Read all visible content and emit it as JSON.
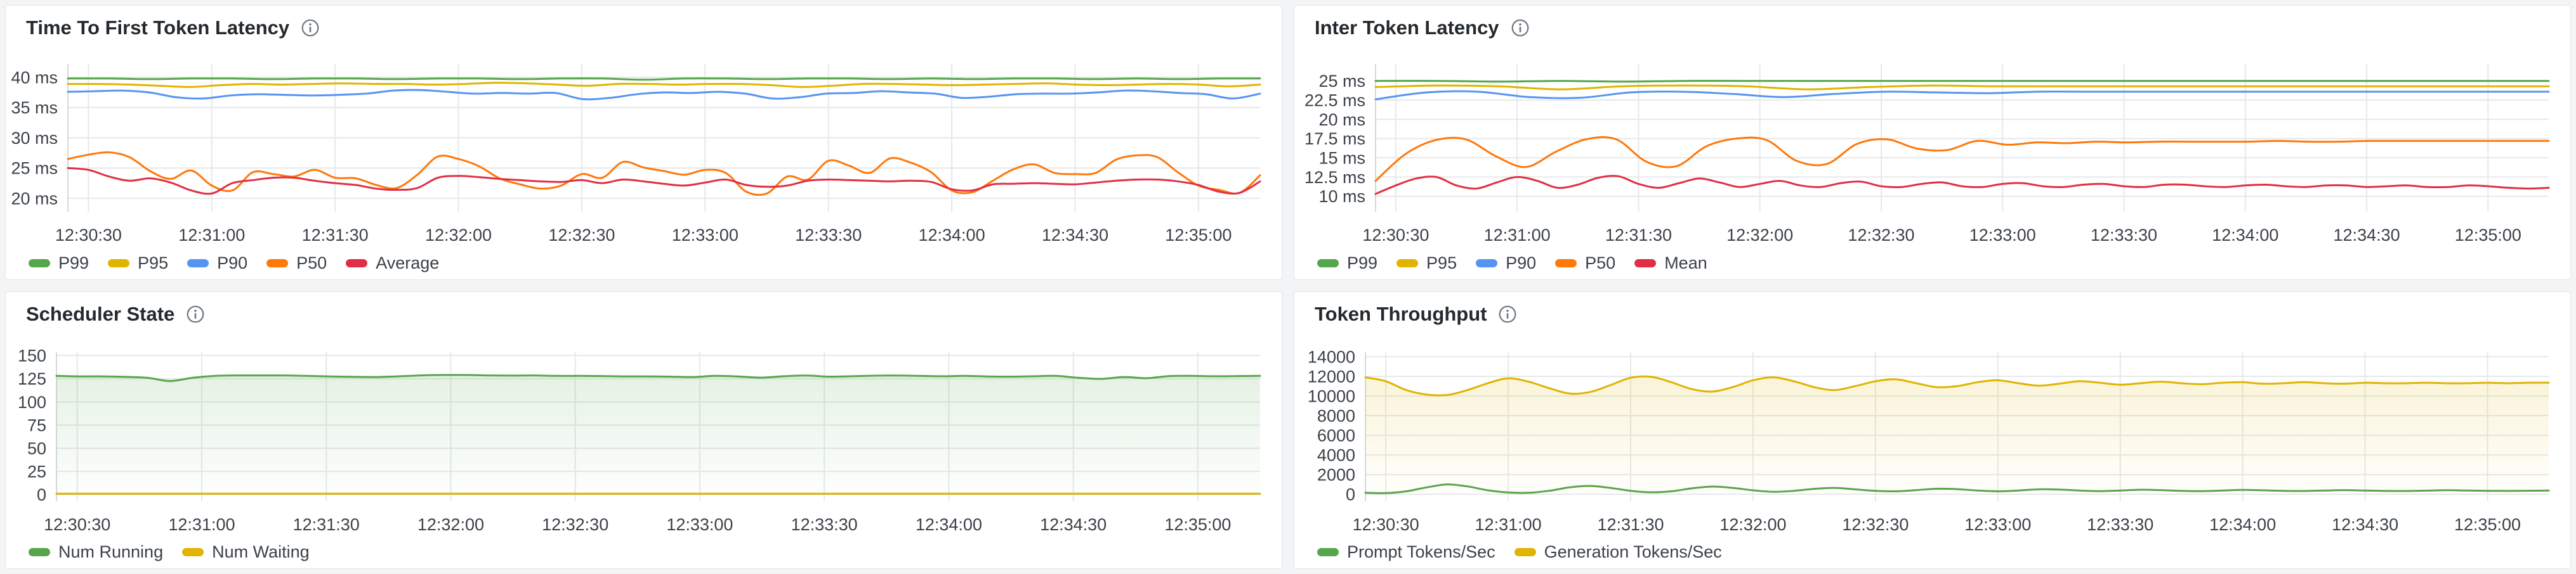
{
  "page": {
    "background": "#f3f4f5",
    "panel_background": "#ffffff",
    "grid_color": "#e6e8ea",
    "axis_color": "#d5d9dc",
    "tick_text_color": "#3b4149",
    "title_color": "#24292e"
  },
  "icons": {
    "panel_info": "info-icon"
  },
  "palette": {
    "green": "#56a64b",
    "yellow": "#e0b400",
    "blue": "#5794f2",
    "orange": "#ff780a",
    "red": "#e02f44"
  },
  "xticks_shared": {
    "labels": [
      "12:30:30",
      "12:31:00",
      "12:31:30",
      "12:32:00",
      "12:32:30",
      "12:33:00",
      "12:33:30",
      "12:34:00",
      "12:34:30",
      "12:35:00"
    ],
    "t": [
      5,
      35,
      65,
      95,
      125,
      155,
      185,
      215,
      245,
      275
    ]
  },
  "chart_data": [
    {
      "type": "line",
      "title": "Time To First Token Latency",
      "x_domain": [
        0,
        290
      ],
      "ylim": [
        17.8,
        42.2
      ],
      "grid": true,
      "legend_position": "bottom",
      "yticks": [
        {
          "v": 40,
          "label": "40 ms"
        },
        {
          "v": 35,
          "label": "35 ms"
        },
        {
          "v": 30,
          "label": "30 ms"
        },
        {
          "v": 25,
          "label": "25 ms"
        },
        {
          "v": 20,
          "label": "20 ms"
        }
      ],
      "series": [
        {
          "name": "P99",
          "color": "#56a64b",
          "values": [
            39.8,
            39.8,
            39.7,
            39.8,
            39.8,
            39.7,
            39.8,
            39.8,
            39.7,
            39.8,
            39.8,
            39.7,
            39.8,
            39.8,
            39.6,
            39.8,
            39.8,
            39.7,
            39.8,
            39.8,
            39.7,
            39.8,
            39.7,
            39.8,
            39.8,
            39.7,
            39.8,
            39.7,
            39.8,
            39.8
          ]
        },
        {
          "name": "P95",
          "color": "#e0b400",
          "values": [
            38.9,
            38.9,
            38.8,
            38.6,
            38.4,
            38.7,
            38.9,
            38.8,
            38.9,
            39.0,
            38.9,
            38.9,
            38.8,
            38.9,
            39.1,
            39.0,
            38.8,
            38.6,
            38.9,
            38.9,
            38.8,
            38.9,
            38.9,
            38.7,
            38.4,
            38.6,
            38.9,
            38.9,
            38.8,
            38.7,
            38.8,
            38.9,
            39.0,
            38.8,
            38.7,
            38.8,
            38.9,
            38.8,
            38.5,
            38.8
          ]
        },
        {
          "name": "P90",
          "color": "#5794f2",
          "values": [
            37.6,
            37.7,
            37.8,
            37.5,
            36.7,
            36.5,
            37.0,
            37.2,
            37.1,
            37.0,
            37.1,
            37.3,
            37.8,
            37.9,
            37.6,
            37.3,
            37.4,
            37.3,
            37.4,
            36.4,
            36.6,
            37.2,
            37.5,
            37.4,
            37.6,
            37.3,
            36.5,
            36.7,
            37.3,
            37.4,
            37.7,
            37.5,
            37.3,
            36.6,
            36.8,
            37.2,
            37.3,
            37.3,
            37.5,
            37.8,
            37.7,
            37.4,
            37.2,
            36.5,
            37.3
          ]
        },
        {
          "name": "P50",
          "color": "#ff780a",
          "values": [
            26.5,
            27.2,
            27.6,
            26.8,
            24.5,
            23.2,
            24.6,
            22.1,
            21.3,
            24.3,
            24.0,
            23.6,
            24.7,
            23.4,
            23.3,
            22.2,
            21.7,
            23.9,
            26.9,
            26.5,
            25.3,
            23.3,
            22.3,
            21.6,
            22.1,
            24.0,
            23.4,
            26.0,
            25.1,
            24.5,
            23.9,
            24.7,
            24.2,
            21.1,
            20.8,
            23.6,
            23.1,
            26.2,
            25.4,
            24.2,
            26.6,
            25.9,
            24.3,
            21.3,
            21.0,
            22.9,
            24.8,
            25.6,
            24.2,
            24.0,
            24.2,
            26.4,
            27.1,
            26.8,
            24.3,
            22.1,
            21.4,
            20.9,
            23.8
          ]
        },
        {
          "name": "Average",
          "color": "#e02f44",
          "values": [
            25.0,
            24.7,
            23.6,
            22.9,
            23.3,
            22.6,
            21.3,
            20.8,
            22.5,
            23.0,
            23.4,
            23.4,
            22.9,
            22.5,
            22.2,
            21.6,
            21.4,
            21.7,
            23.4,
            23.7,
            23.5,
            23.2,
            23.0,
            22.8,
            22.7,
            23.0,
            22.5,
            23.1,
            22.8,
            22.4,
            22.1,
            22.6,
            23.1,
            22.2,
            21.9,
            22.1,
            22.9,
            23.1,
            23.0,
            22.9,
            22.8,
            22.9,
            22.7,
            21.5,
            21.3,
            22.3,
            22.4,
            22.5,
            22.4,
            22.3,
            22.6,
            22.9,
            23.1,
            23.1,
            22.8,
            22.2,
            21.1,
            20.9,
            22.8
          ]
        }
      ]
    },
    {
      "type": "line",
      "title": "Inter Token Latency",
      "x_domain": [
        0,
        290
      ],
      "ylim": [
        8.0,
        27.2
      ],
      "grid": true,
      "legend_position": "bottom",
      "yticks": [
        {
          "v": 25,
          "label": "25 ms"
        },
        {
          "v": 22.5,
          "label": "22.5 ms"
        },
        {
          "v": 20,
          "label": "20 ms"
        },
        {
          "v": 17.5,
          "label": "17.5 ms"
        },
        {
          "v": 15,
          "label": "15 ms"
        },
        {
          "v": 12.5,
          "label": "12.5 ms"
        },
        {
          "v": 10,
          "label": "10 ms"
        }
      ],
      "series": [
        {
          "name": "P99",
          "color": "#56a64b",
          "values": [
            25.0,
            25.0,
            24.9,
            25.0,
            24.9,
            25.0,
            25.0,
            25.0,
            25.0,
            25.0,
            25.0,
            25.0,
            25.0,
            25.0,
            25.0,
            25.0,
            25.0,
            25.0,
            25.0,
            25.0
          ]
        },
        {
          "name": "P95",
          "color": "#e0b400",
          "values": [
            24.2,
            24.4,
            24.3,
            23.9,
            24.3,
            24.4,
            24.3,
            23.9,
            24.2,
            24.4,
            24.3,
            24.3,
            24.3,
            24.3,
            24.3,
            24.3,
            24.3,
            24.3,
            24.3,
            24.3
          ]
        },
        {
          "name": "P90",
          "color": "#5794f2",
          "values": [
            22.6,
            23.5,
            23.6,
            22.9,
            22.8,
            23.5,
            23.6,
            23.3,
            22.9,
            23.3,
            23.6,
            23.5,
            23.4,
            23.6,
            23.6,
            23.6,
            23.6,
            23.6,
            23.6,
            23.6,
            23.6,
            23.6,
            23.6,
            23.6
          ]
        },
        {
          "name": "P50",
          "color": "#ff780a",
          "values": [
            12.0,
            15.5,
            17.3,
            17.4,
            15.2,
            13.8,
            15.8,
            17.4,
            17.4,
            14.5,
            13.9,
            16.5,
            17.5,
            17.3,
            14.6,
            14.2,
            16.8,
            17.4,
            16.2,
            16.0,
            17.2,
            16.7,
            17.0,
            16.9,
            17.1,
            17.0,
            17.1,
            17.1,
            17.1,
            17.1,
            17.2,
            17.1,
            17.1,
            17.2,
            17.2,
            17.2,
            17.2,
            17.2,
            17.2,
            17.2
          ]
        },
        {
          "name": "Mean",
          "color": "#e02f44",
          "values": [
            10.3,
            11.4,
            12.3,
            12.5,
            11.4,
            11.0,
            11.8,
            12.5,
            12.0,
            11.1,
            11.5,
            12.4,
            12.6,
            11.6,
            11.1,
            11.7,
            12.3,
            11.8,
            11.2,
            11.6,
            12.0,
            11.4,
            11.2,
            11.7,
            11.9,
            11.3,
            11.2,
            11.6,
            11.8,
            11.3,
            11.2,
            11.6,
            11.7,
            11.3,
            11.2,
            11.5,
            11.6,
            11.3,
            11.2,
            11.5,
            11.5,
            11.3,
            11.2,
            11.4,
            11.5,
            11.3,
            11.2,
            11.4,
            11.4,
            11.2,
            11.3,
            11.4,
            11.2,
            11.2,
            11.4,
            11.3,
            11.1,
            11.0,
            11.1
          ]
        }
      ]
    },
    {
      "type": "line",
      "title": "Scheduler State",
      "x_domain": [
        0,
        290
      ],
      "ylim": [
        -7,
        153.5
      ],
      "grid": true,
      "legend_position": "bottom",
      "yticks": [
        {
          "v": 150,
          "label": "150"
        },
        {
          "v": 125,
          "label": "125"
        },
        {
          "v": 100,
          "label": "100"
        },
        {
          "v": 75,
          "label": "75"
        },
        {
          "v": 50,
          "label": "50"
        },
        {
          "v": 25,
          "label": "25"
        },
        {
          "v": 0,
          "label": "0"
        }
      ],
      "series": [
        {
          "name": "Num Running",
          "color": "#56a64b",
          "fill": true,
          "values": [
            128,
            127.5,
            127.5,
            127,
            126,
            122.5,
            126,
            128,
            128.5,
            128.5,
            128.5,
            128,
            127.5,
            127,
            126.8,
            127.5,
            128.5,
            129,
            129,
            128.5,
            128.3,
            128.5,
            128,
            128,
            127.8,
            127.5,
            127.5,
            127.2,
            126.8,
            128,
            127.4,
            126.2,
            127.6,
            128.4,
            127.2,
            127.6,
            128.2,
            128.4,
            128,
            127.6,
            128,
            127.4,
            127.2,
            127.6,
            128,
            126,
            124.8,
            126.8,
            125.6,
            127.8,
            128,
            127.6,
            127.8,
            128
          ]
        },
        {
          "name": "Num Waiting",
          "color": "#e0b400",
          "values": [
            1,
            1
          ]
        }
      ]
    },
    {
      "type": "line",
      "title": "Token Throughput",
      "x_domain": [
        0,
        290
      ],
      "ylim": [
        -700,
        14450
      ],
      "grid": true,
      "legend_position": "bottom",
      "yticks": [
        {
          "v": 14000,
          "label": "14000"
        },
        {
          "v": 12000,
          "label": "12000"
        },
        {
          "v": 10000,
          "label": "10000"
        },
        {
          "v": 8000,
          "label": "8000"
        },
        {
          "v": 6000,
          "label": "6000"
        },
        {
          "v": 4000,
          "label": "4000"
        },
        {
          "v": 2000,
          "label": "2000"
        },
        {
          "v": 0,
          "label": "0"
        }
      ],
      "series": [
        {
          "name": "Prompt Tokens/Sec",
          "color": "#56a64b",
          "values": [
            150,
            120,
            300,
            700,
            1000,
            800,
            400,
            180,
            150,
            350,
            700,
            850,
            650,
            350,
            200,
            300,
            600,
            780,
            650,
            400,
            250,
            350,
            550,
            650,
            500,
            350,
            300,
            420,
            560,
            520,
            380,
            300,
            380,
            500,
            480,
            380,
            320,
            380,
            460,
            420,
            350,
            320,
            380,
            440,
            400,
            350,
            330,
            380,
            420,
            380,
            340,
            330,
            370,
            410,
            380,
            350,
            340,
            360,
            380
          ]
        },
        {
          "name": "Generation Tokens/Sec",
          "color": "#e0b400",
          "fill": true,
          "values": [
            11900,
            11500,
            10600,
            10150,
            10100,
            10600,
            11300,
            11800,
            11450,
            10800,
            10250,
            10400,
            11100,
            11850,
            11950,
            11400,
            10700,
            10450,
            10900,
            11600,
            11900,
            11500,
            10900,
            10600,
            11000,
            11500,
            11700,
            11300,
            10900,
            11000,
            11400,
            11600,
            11300,
            11050,
            11250,
            11500,
            11350,
            11150,
            11300,
            11450,
            11300,
            11200,
            11350,
            11400,
            11250,
            11300,
            11400,
            11300,
            11250,
            11350,
            11300,
            11300,
            11350,
            11300,
            11300,
            11350,
            11300,
            11350,
            11350
          ]
        }
      ]
    }
  ]
}
